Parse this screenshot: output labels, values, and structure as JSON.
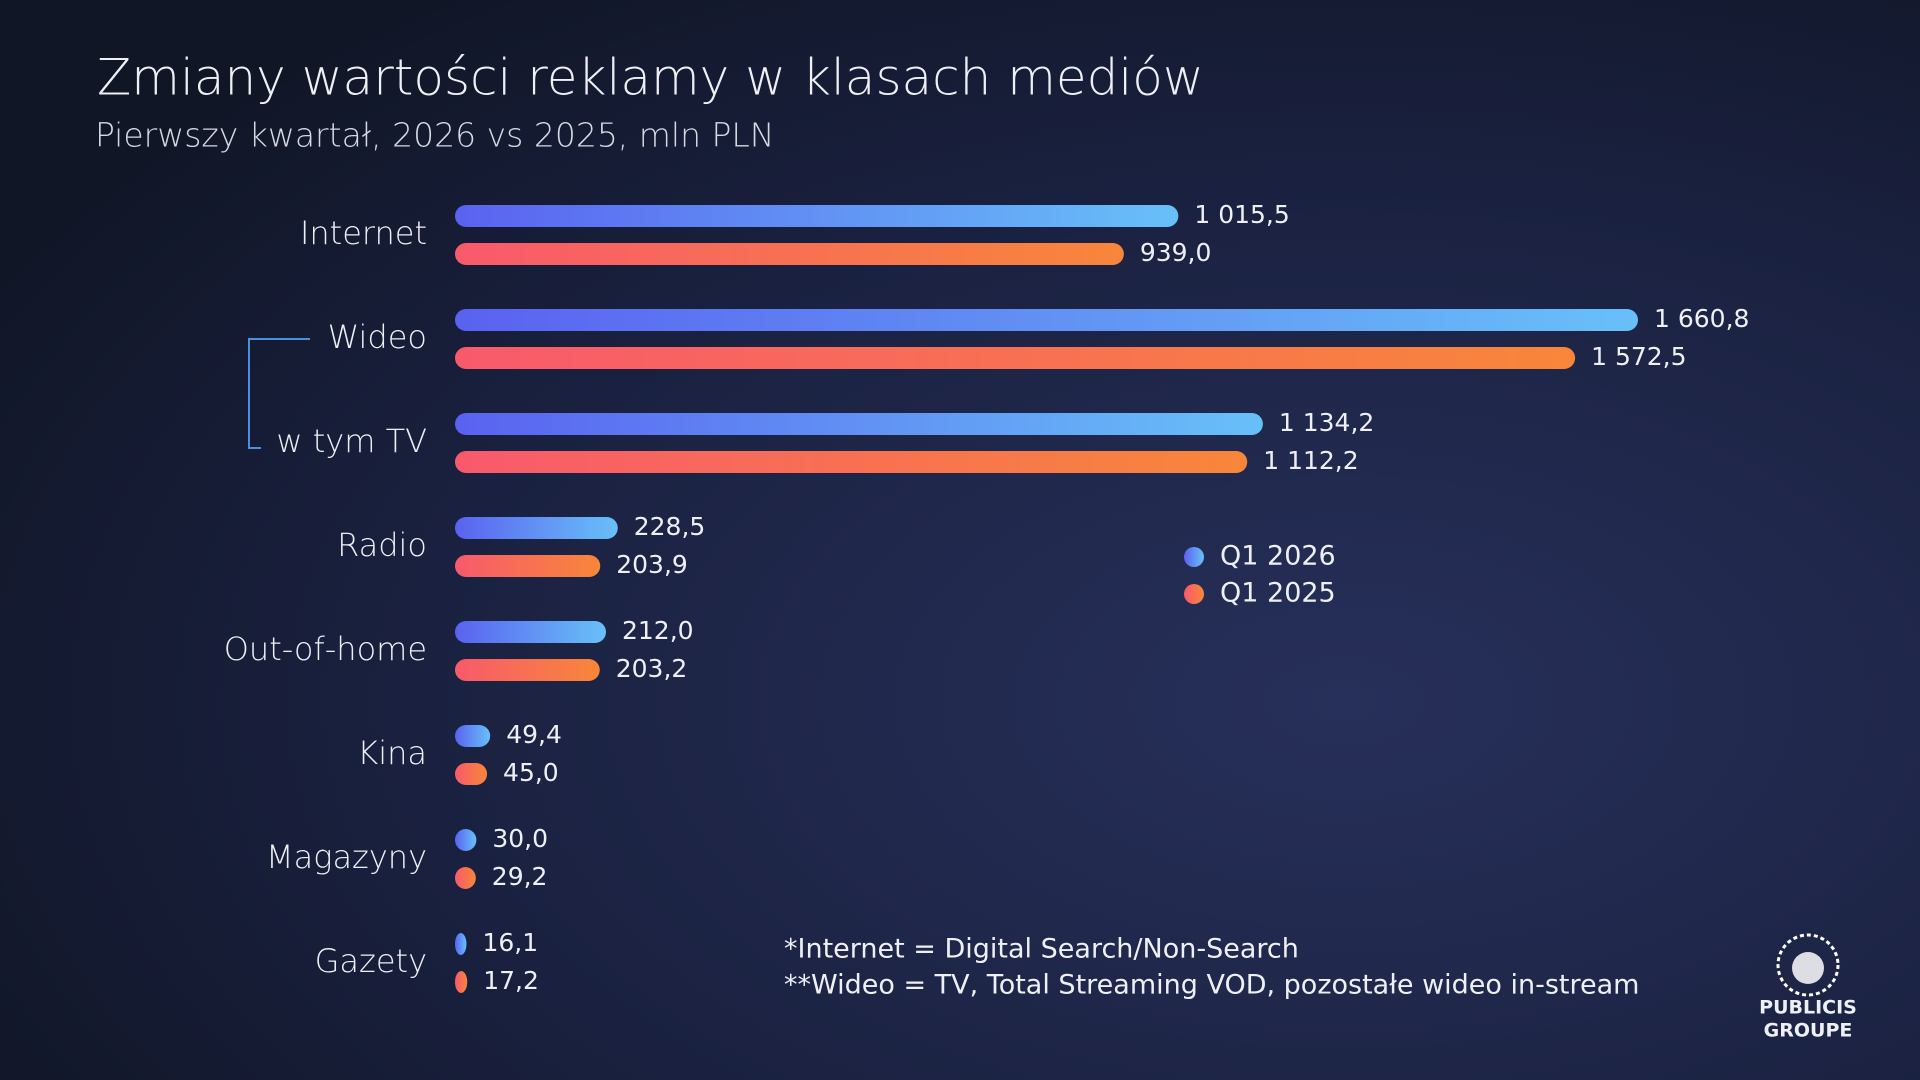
{
  "chart_data": {
    "type": "bar",
    "orientation": "horizontal",
    "title": "Zmiany wartości reklamy w klasach mediów",
    "subtitle": "Pierwszy kwartał, 2026 vs 2025, mln PLN",
    "categories": [
      "Internet",
      "Wideo",
      "w tym TV",
      "Radio",
      "Out-of-home",
      "Kina",
      "Magazyny",
      "Gazety"
    ],
    "series": [
      {
        "name": "Q1 2026",
        "color": "#5a62f0",
        "gradient_end": "#68c0f8",
        "values": [
          1015.5,
          1660.8,
          1134.2,
          228.5,
          212.0,
          49.4,
          30.0,
          16.1
        ],
        "value_labels": [
          "1 015,5",
          "1 660,8",
          "1 134,2",
          "228,5",
          "212,0",
          "49,4",
          "30,0",
          "16,1"
        ]
      },
      {
        "name": "Q1 2025",
        "color": "#f85a6c",
        "gradient_end": "#f8863a",
        "values": [
          939.0,
          1572.5,
          1112.2,
          203.9,
          203.2,
          45.0,
          29.2,
          17.2
        ],
        "value_labels": [
          "939,0",
          "1 572,5",
          "1 112,2",
          "203,9",
          "203,2",
          "45,0",
          "29,2",
          "17,2"
        ]
      }
    ],
    "notes": [
      "*Internet = Digital Search/Non-Search",
      "**Wideo = TV, Total Streaming VOD, pozostałe wideo in-stream"
    ]
  },
  "logo": [
    "PUBLICIS",
    "GROUPE"
  ]
}
